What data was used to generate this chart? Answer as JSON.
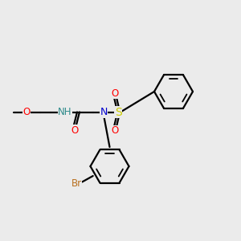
{
  "background_color": "#ebebeb",
  "figsize": [
    3.0,
    3.0
  ],
  "dpi": 100,
  "line_width": 1.6,
  "colors": {
    "black": "#000000",
    "red": "#ff0000",
    "blue": "#0000cd",
    "teal": "#2e8b8b",
    "yellow": "#cccc00",
    "orange": "#b87020"
  },
  "layout": {
    "xlim": [
      0,
      1
    ],
    "ylim": [
      0,
      1
    ]
  }
}
